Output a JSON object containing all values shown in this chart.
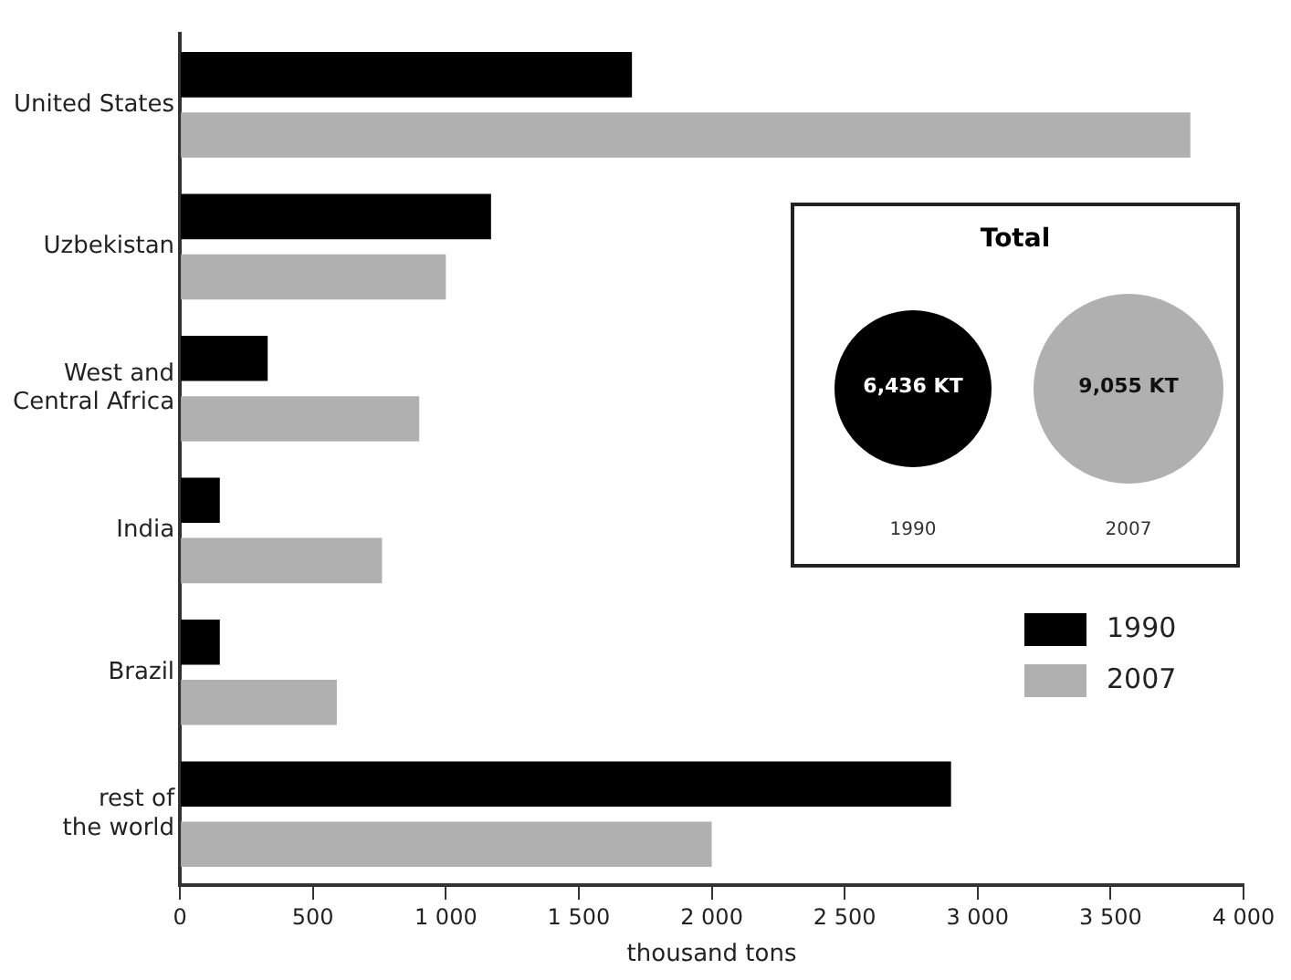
{
  "chart_data": {
    "type": "bar",
    "orientation": "horizontal",
    "xlabel": "thousand tons",
    "categories": [
      "United States",
      "Uzbekistan",
      "West and Central Africa",
      "India",
      "Brazil",
      "rest of the world"
    ],
    "series": [
      {
        "name": "1990",
        "color": "#000000",
        "values": [
          1700,
          1170,
          330,
          150,
          150,
          2900
        ]
      },
      {
        "name": "2007",
        "color": "#b0b0b0",
        "values": [
          3800,
          1000,
          900,
          760,
          590,
          2000
        ]
      }
    ],
    "xlim": [
      0,
      4000
    ],
    "xticks": [
      0,
      500,
      {
        "value": 1000,
        "label": "1 000"
      },
      {
        "value": 1500,
        "label": "1 500"
      },
      {
        "value": 2000,
        "label": "2 000"
      },
      {
        "value": 2500,
        "label": "2 500"
      },
      {
        "value": 3000,
        "label": "3 000"
      },
      {
        "value": 3500,
        "label": "3 500"
      },
      {
        "value": 4000,
        "label": "4 000"
      }
    ],
    "grid": false,
    "legend": "bottom right",
    "annotations": [
      "Total",
      "6,436 KT",
      "9,055 KT",
      "1990",
      "2007"
    ]
  }
}
